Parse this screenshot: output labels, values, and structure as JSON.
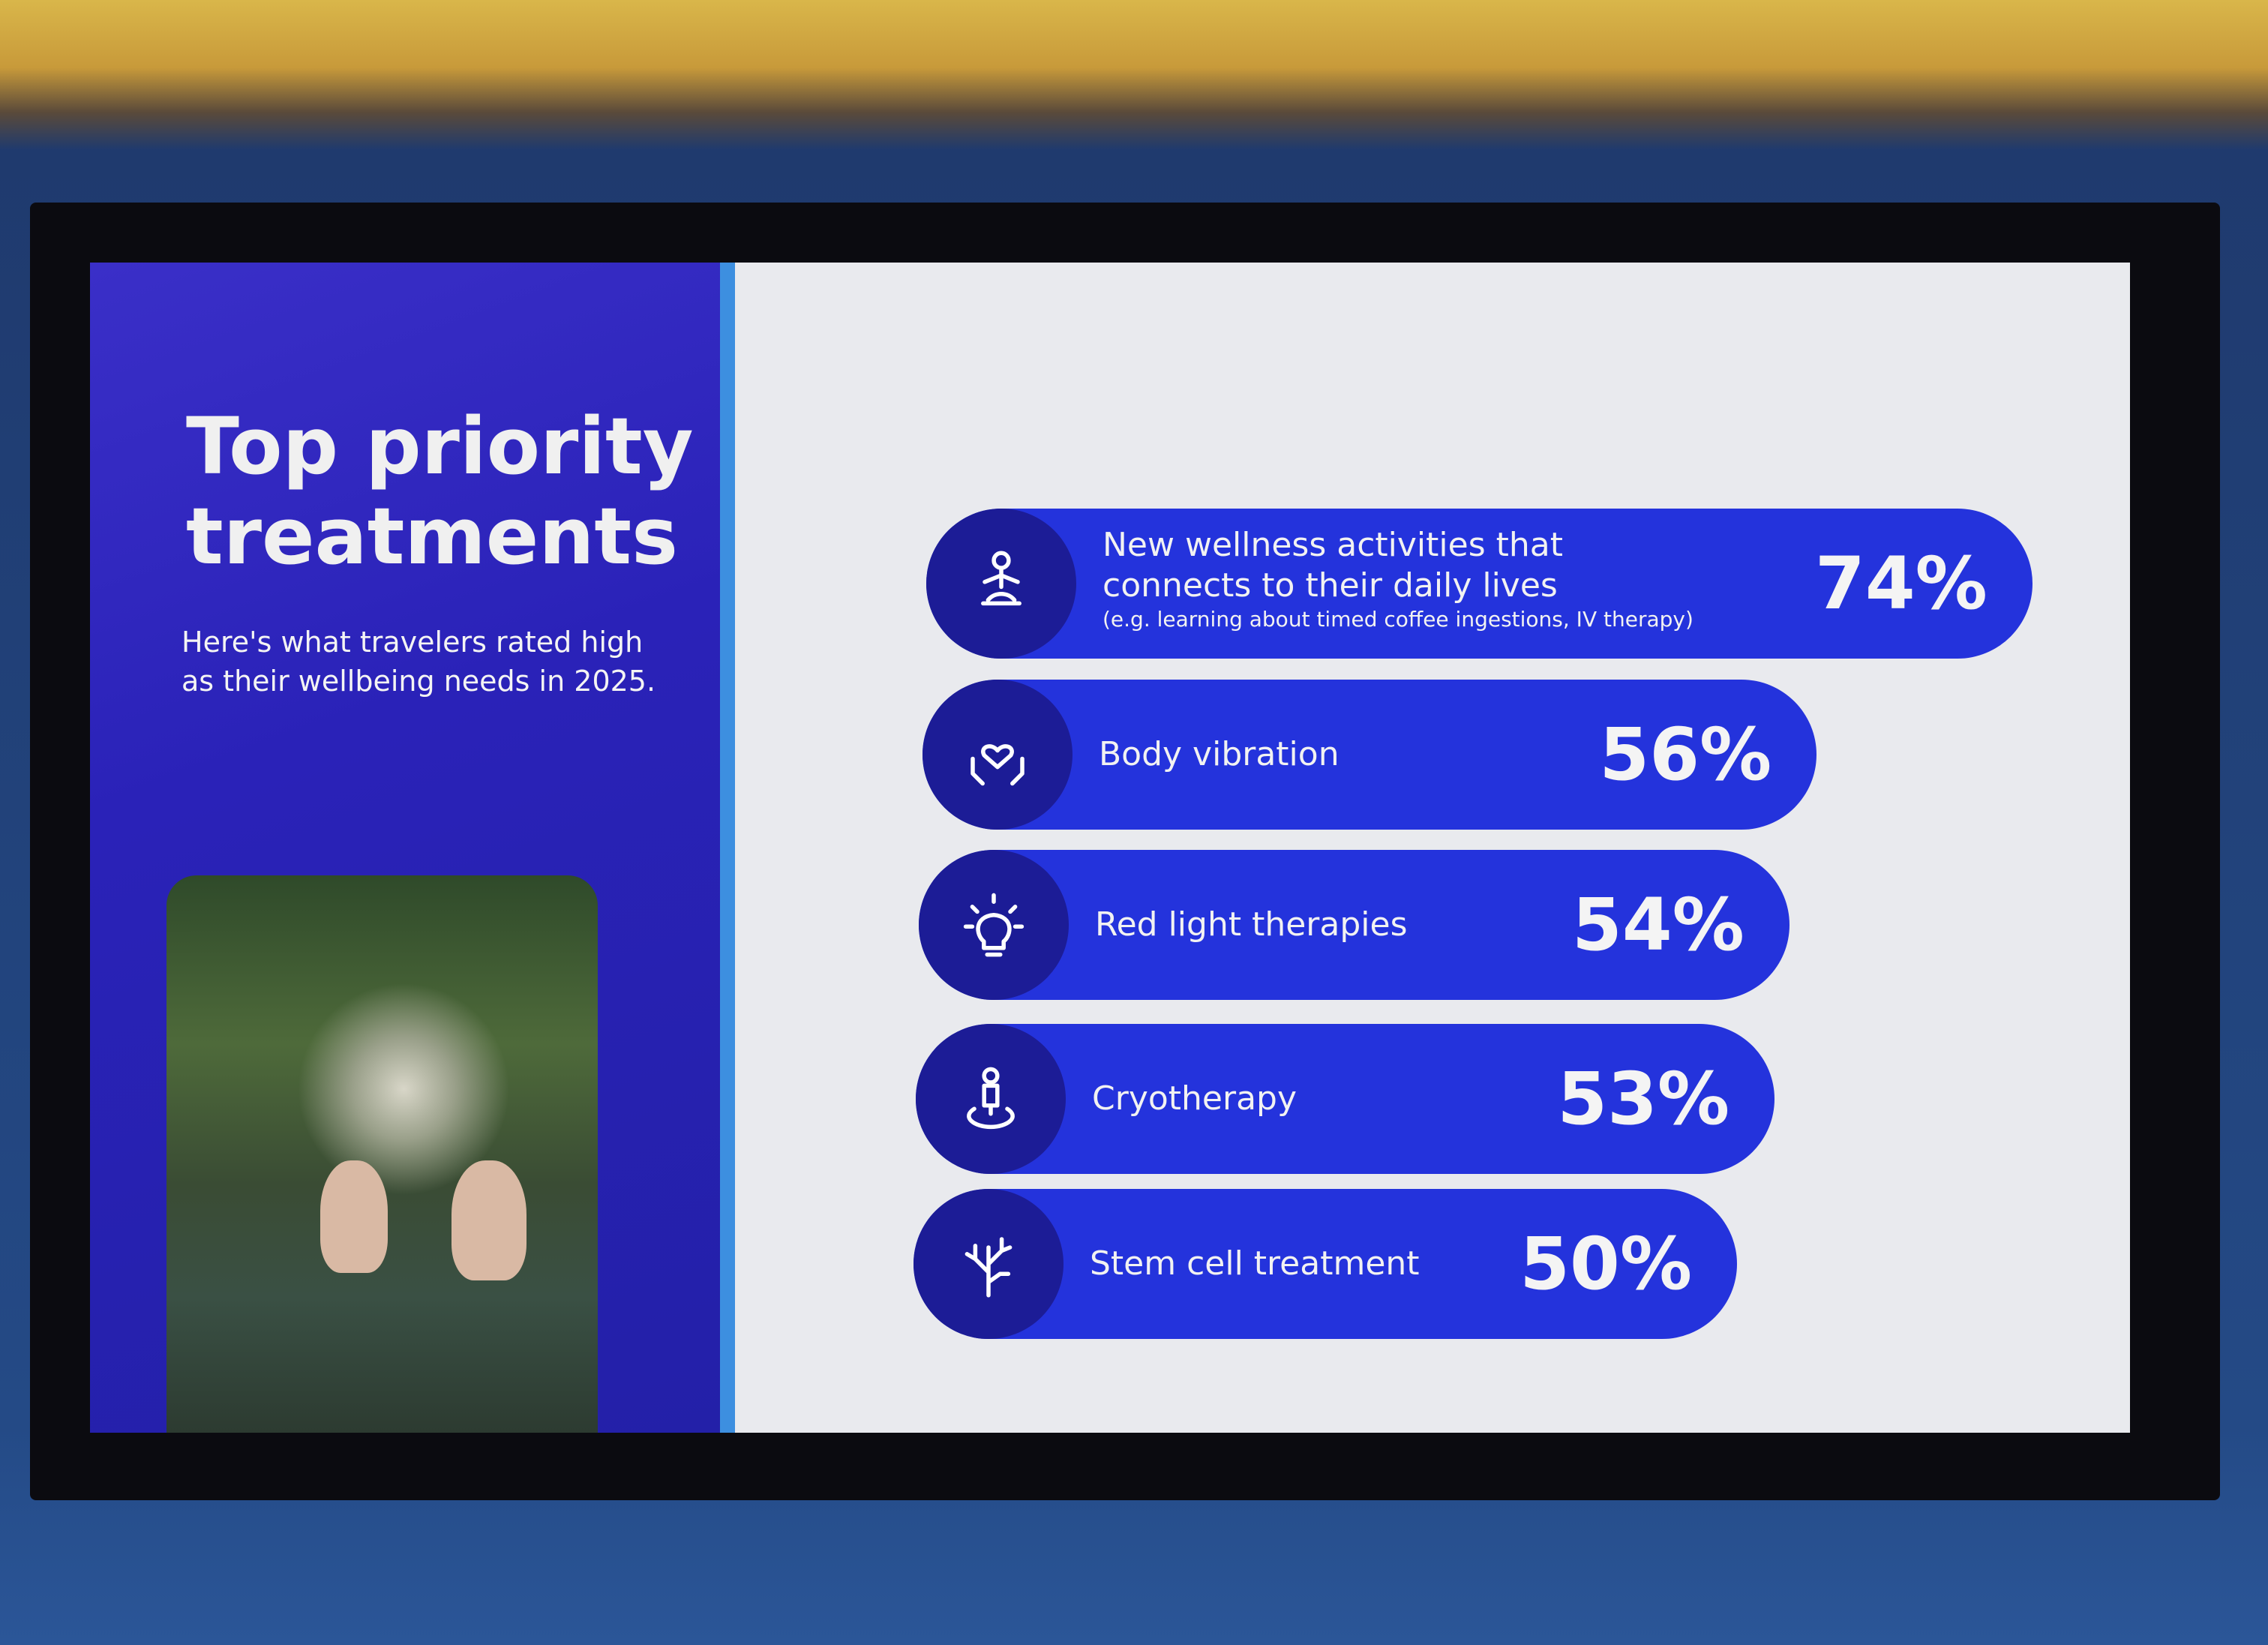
{
  "slide": {
    "title_line1": "Top priority",
    "title_line2": "treatments",
    "subtitle": "Here's what travelers rated high as their wellbeing needs in 2025."
  },
  "colors": {
    "panel": "#2a22b8",
    "bar": "#2433dc",
    "icon_circle": "#1c1c96",
    "background": "#e9eaee",
    "stripe": "#3d8fe0"
  },
  "chart_data": {
    "type": "bar",
    "orientation": "horizontal",
    "categories": [
      "New wellness activities that connects to their daily lives",
      "Body vibration",
      "Red light therapies",
      "Cryotherapy",
      "Stem cell treatment"
    ],
    "notes": [
      "(e.g. learning about timed coffee ingestions, IV therapy)",
      "",
      "",
      "",
      ""
    ],
    "values": [
      74,
      56,
      54,
      53,
      50
    ],
    "labels": [
      "74%",
      "56%",
      "54%",
      "53%",
      "50%"
    ],
    "icons": [
      "meditation-icon",
      "heart-hands-icon",
      "lightbulb-icon",
      "person-location-icon",
      "coral-icon"
    ],
    "unit": "%"
  }
}
